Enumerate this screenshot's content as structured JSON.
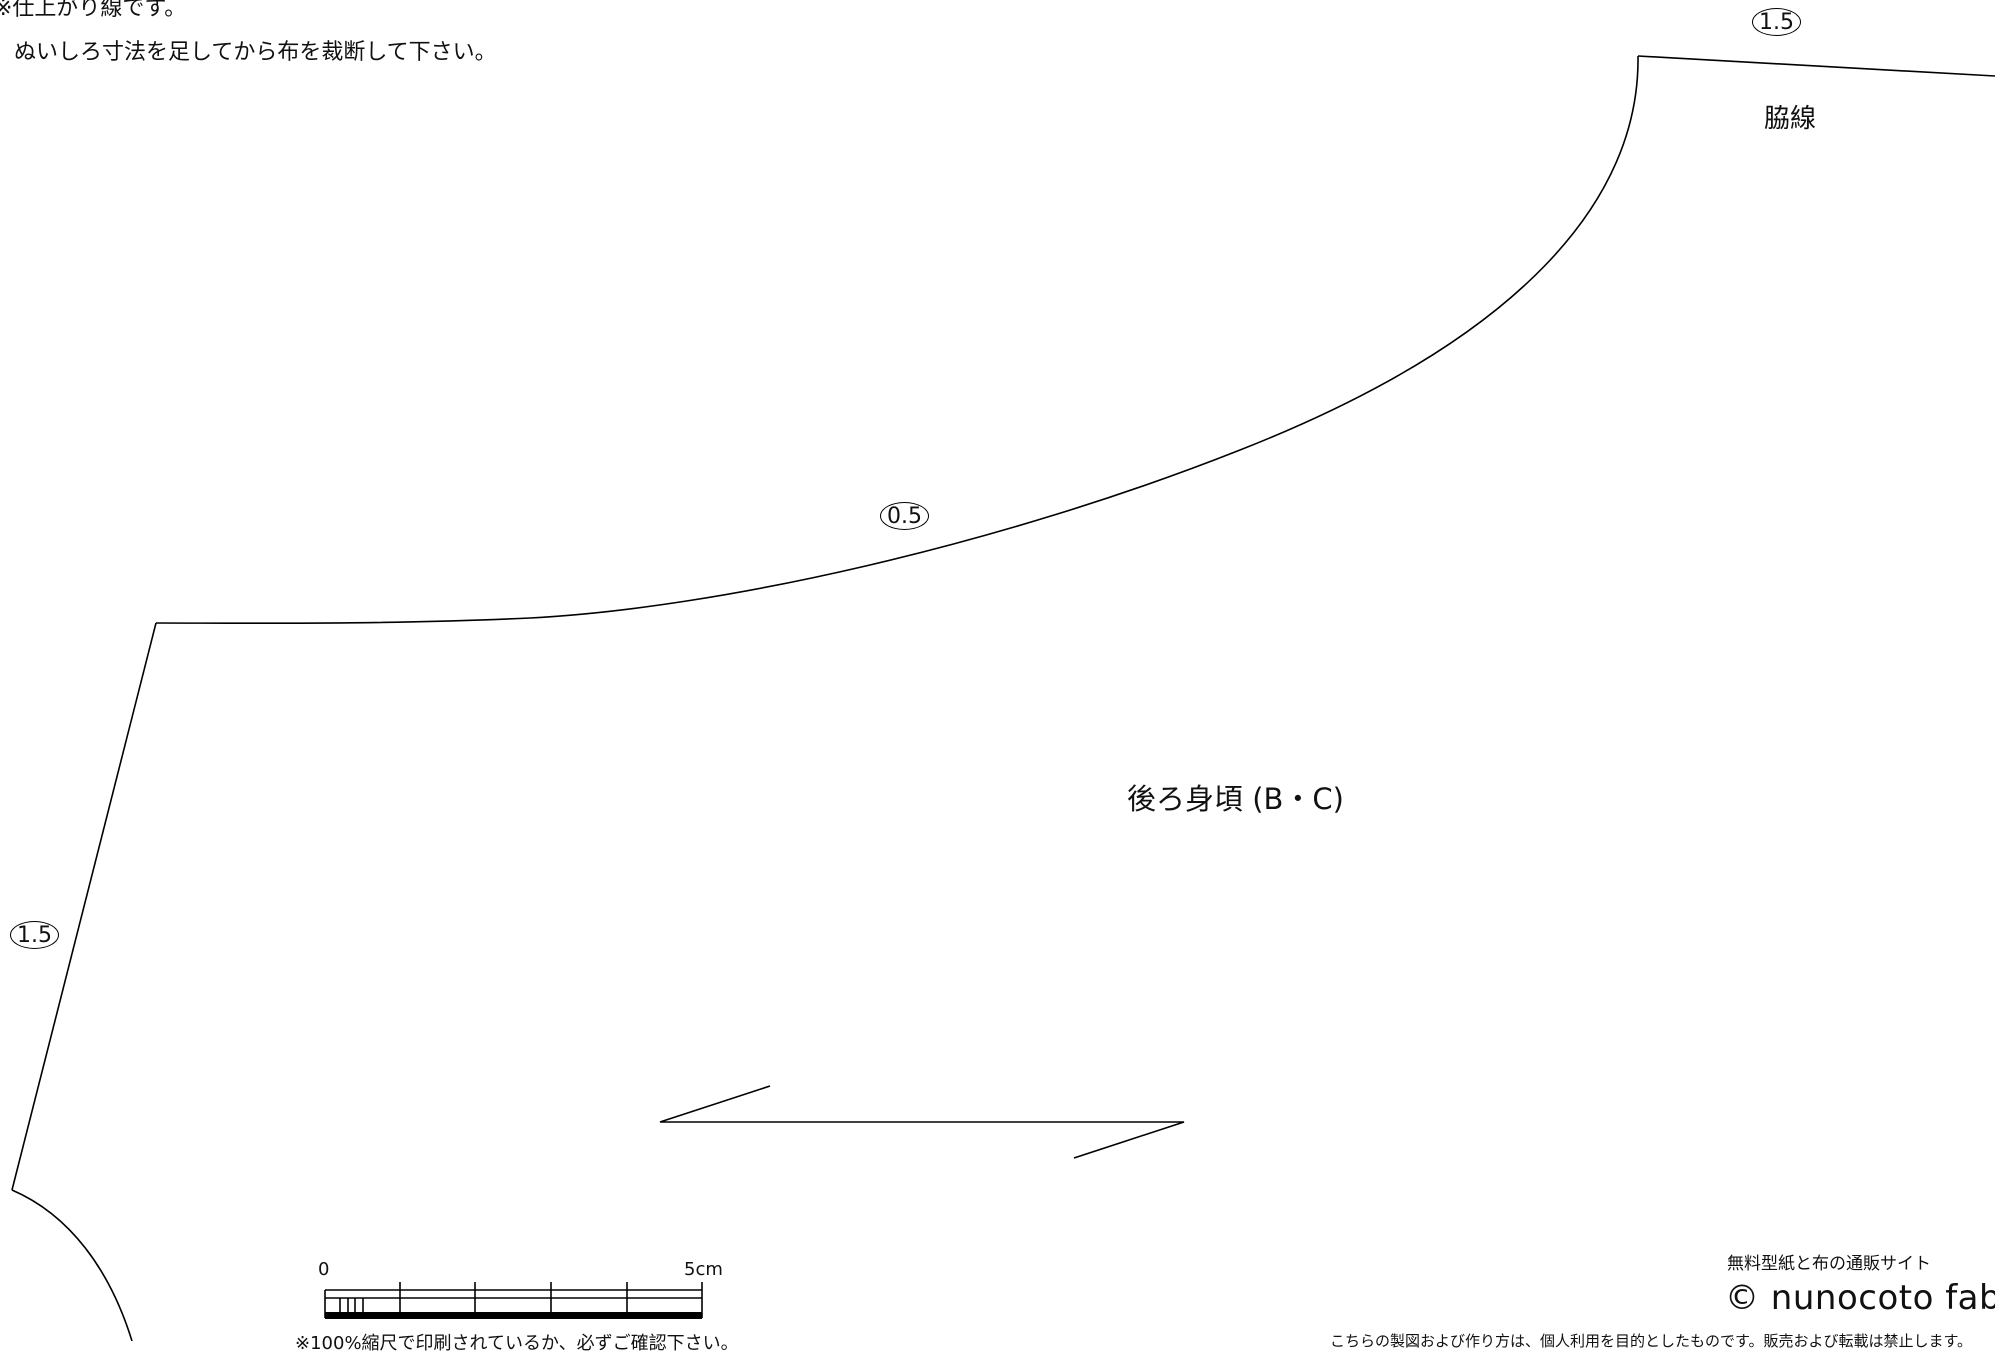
{
  "notes": {
    "line1": "※仕上がり線です。",
    "line2": "ぬいしろ寸法を足してから布を裁断して下さい。"
  },
  "pattern_piece": {
    "title": "後ろ身頃 (B・C)",
    "side_line_label": "脇線",
    "seam_allowances": {
      "top_edge": "1.5",
      "neck_curve": "0.5",
      "left_edge": "1.5"
    },
    "grain_arrow_icon": "grainline-arrow-icon"
  },
  "scale": {
    "start_label": "0",
    "end_label": "5cm",
    "print_note": "※100%縮尺で印刷されているか、必ずご確認下さい。"
  },
  "footer": {
    "site_description": "無料型紙と布の通販サイト",
    "copyright": "© nunocoto fabric",
    "terms": "こちらの製図および作り方は、個人利用を目的としたものです。販売および転載は禁止します。"
  }
}
